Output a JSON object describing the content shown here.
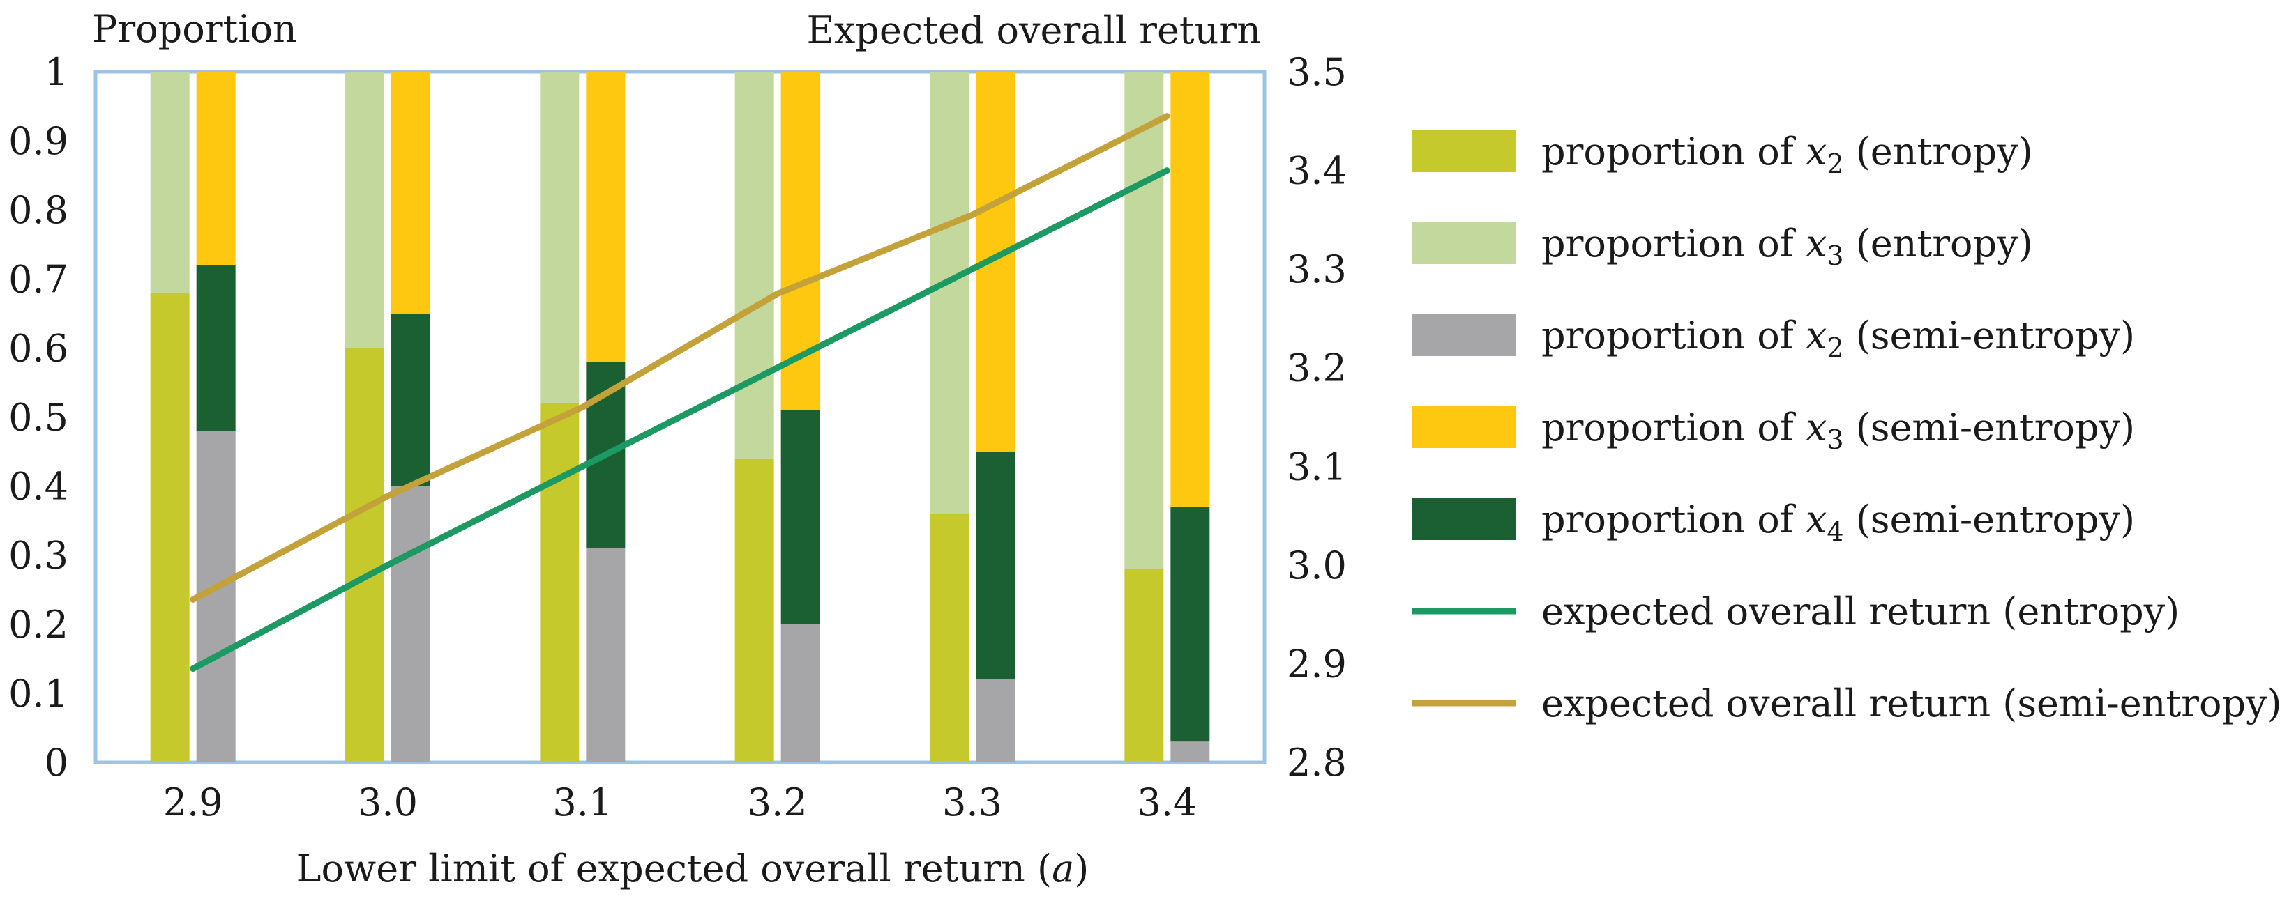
{
  "chart_data": {
    "type": "bar",
    "title": "",
    "xlabel": "Lower limit of expected overall return (a)",
    "xlabel_prefix": "Lower limit of expected overall return (",
    "xlabel_var": "a",
    "xlabel_suffix": ")",
    "ylabel_left": "Proportion",
    "ylabel_right": "Expected overall return",
    "categories": [
      "2.9",
      "3.0",
      "3.1",
      "3.2",
      "3.3",
      "3.4"
    ],
    "ylim_left": [
      0,
      1
    ],
    "yticks_left": [
      "0",
      "0.1",
      "0.2",
      "0.3",
      "0.4",
      "0.5",
      "0.6",
      "0.7",
      "0.8",
      "0.9",
      "1"
    ],
    "ylim_right": [
      2.8,
      3.5
    ],
    "yticks_right": [
      "2.8",
      "2.9",
      "3.0",
      "3.1",
      "3.2",
      "3.3",
      "3.4",
      "3.5"
    ],
    "bar_series": [
      {
        "name": "proportion of x2 (entropy)",
        "group": "entropy",
        "color": "#c6c92c",
        "values": [
          0.68,
          0.6,
          0.52,
          0.44,
          0.36,
          0.28
        ]
      },
      {
        "name": "proportion of x3 (entropy)",
        "group": "entropy",
        "color": "#c3d89c",
        "values": [
          0.32,
          0.4,
          0.48,
          0.56,
          0.64,
          0.72
        ]
      },
      {
        "name": "proportion of x2 (semi-entropy)",
        "group": "semi-entropy",
        "color": "#a6a6a8",
        "values": [
          0.48,
          0.4,
          0.31,
          0.2,
          0.12,
          0.03
        ]
      },
      {
        "name": "proportion of x4 (semi-entropy)",
        "group": "semi-entropy",
        "color": "#1b6032",
        "values": [
          0.24,
          0.25,
          0.27,
          0.31,
          0.33,
          0.34
        ]
      },
      {
        "name": "proportion of x3 (semi-entropy)",
        "group": "semi-entropy",
        "color": "#fec811",
        "values": [
          0.28,
          0.35,
          0.42,
          0.49,
          0.55,
          0.63
        ]
      }
    ],
    "line_series": [
      {
        "name": "expected overall return (entropy)",
        "color": "#1d9a63",
        "values": [
          2.895,
          3.0,
          3.1,
          3.2,
          3.3,
          3.4
        ]
      },
      {
        "name": "expected overall return (semi-entropy)",
        "color": "#c4a23a",
        "values": [
          2.965,
          3.07,
          3.16,
          3.275,
          3.355,
          3.455
        ]
      }
    ],
    "legend": [
      {
        "kind": "bar",
        "color": "#c6c92c",
        "prefix": "proportion of ",
        "var": "x",
        "sub": "2",
        "suffix": " (entropy)"
      },
      {
        "kind": "bar",
        "color": "#c3d89c",
        "prefix": "proportion of ",
        "var": "x",
        "sub": "3",
        "suffix": " (entropy)"
      },
      {
        "kind": "bar",
        "color": "#a6a6a8",
        "prefix": "proportion of ",
        "var": "x",
        "sub": "2",
        "suffix": " (semi-entropy)"
      },
      {
        "kind": "bar",
        "color": "#fec811",
        "prefix": "proportion of ",
        "var": "x",
        "sub": "3",
        "suffix": " (semi-entropy)"
      },
      {
        "kind": "bar",
        "color": "#1b6032",
        "prefix": "proportion of ",
        "var": "x",
        "sub": "4",
        "suffix": " (semi-entropy)"
      },
      {
        "kind": "line",
        "color": "#1d9a63",
        "prefix": "expected overall return (entropy)",
        "var": "",
        "sub": "",
        "suffix": ""
      },
      {
        "kind": "line",
        "color": "#c4a23a",
        "prefix": "expected overall return (semi-entropy)",
        "var": "",
        "sub": "",
        "suffix": ""
      }
    ],
    "legend_position": "right",
    "grid": false
  },
  "colors": {
    "plot_border": "#9dc3e6",
    "text": "#1a1a1a"
  }
}
